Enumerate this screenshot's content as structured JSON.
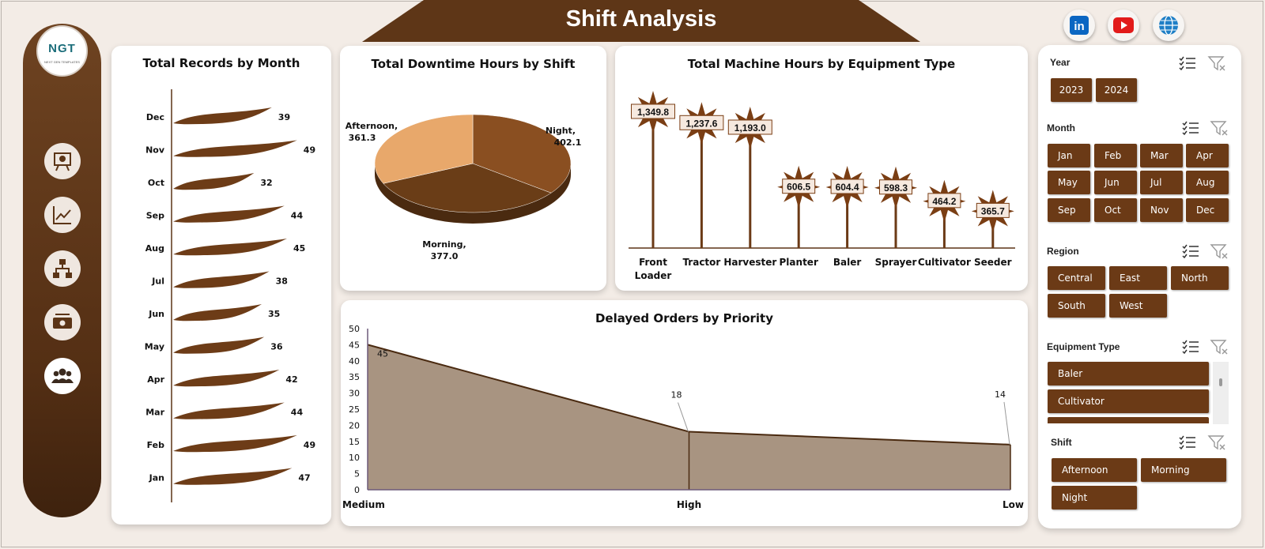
{
  "header": {
    "title": "Shift Analysis"
  },
  "social": [
    "linkedin-icon",
    "youtube-icon",
    "globe-icon"
  ],
  "logo": {
    "text": "NGT",
    "sub": "NEXT GEN TEMPLATES"
  },
  "nav": [
    "presentation-icon",
    "trend-chart-icon",
    "hierarchy-icon",
    "money-icon",
    "users-icon"
  ],
  "colors": {
    "brown": "#6b3a16",
    "dark": "#4a2a10",
    "area": "#a89481",
    "pie_light": "#e8a86b"
  },
  "charts": {
    "records": {
      "title": "Total Records by Month"
    },
    "downtime": {
      "title": "Total Downtime Hours by Shift"
    },
    "machine": {
      "title": "Total Machine Hours by Equipment Type"
    },
    "delayed": {
      "title": "Delayed Orders by Priority"
    }
  },
  "chart_data": [
    {
      "type": "bar",
      "title": "Total Records by Month",
      "categories": [
        "Dec",
        "Nov",
        "Oct",
        "Sep",
        "Aug",
        "Jul",
        "Jun",
        "May",
        "Apr",
        "Mar",
        "Feb",
        "Jan"
      ],
      "values": [
        39,
        49,
        32,
        44,
        45,
        38,
        35,
        36,
        42,
        44,
        49,
        47
      ],
      "orientation": "horizontal"
    },
    {
      "type": "pie",
      "title": "Total Downtime Hours by Shift",
      "categories": [
        "Night",
        "Morning",
        "Afternoon"
      ],
      "labels": [
        "Night,",
        "Morning,",
        "Afternoon,"
      ],
      "values": [
        402.1,
        377.0,
        361.3
      ],
      "value_labels": [
        "402.1",
        "377.0",
        "361.3"
      ]
    },
    {
      "type": "bar",
      "title": "Total Machine Hours by Equipment Type",
      "categories": [
        "Front Loader",
        "Tractor",
        "Harvester",
        "Planter",
        "Baler",
        "Sprayer",
        "Cultivator",
        "Seeder"
      ],
      "category_lines": [
        [
          "Front",
          "Loader"
        ],
        [
          "Tractor"
        ],
        [
          "Harvester"
        ],
        [
          "Planter"
        ],
        [
          "Baler"
        ],
        [
          "Sprayer"
        ],
        [
          "Cultivator"
        ],
        [
          "Seeder"
        ]
      ],
      "values": [
        1349.8,
        1237.6,
        1193.0,
        606.5,
        604.4,
        598.3,
        464.2,
        365.7
      ],
      "value_labels": [
        "1,349.8",
        "1,237.6",
        "1,193.0",
        "606.5",
        "604.4",
        "598.3",
        "464.2",
        "365.7"
      ]
    },
    {
      "type": "area",
      "title": "Delayed Orders by Priority",
      "categories": [
        "Medium",
        "High",
        "Low"
      ],
      "values": [
        45,
        18,
        14
      ],
      "ylim": [
        0,
        50
      ],
      "yticks": [
        "0",
        "5",
        "10",
        "15",
        "20",
        "25",
        "30",
        "35",
        "40",
        "45",
        "50"
      ]
    }
  ],
  "slicers": {
    "year": {
      "title": "Year",
      "items": [
        "2023",
        "2024"
      ]
    },
    "month": {
      "title": "Month",
      "items": [
        "Jan",
        "Feb",
        "Mar",
        "Apr",
        "May",
        "Jun",
        "Jul",
        "Aug",
        "Sep",
        "Oct",
        "Nov",
        "Dec"
      ]
    },
    "region": {
      "title": "Region",
      "items": [
        "Central",
        "East",
        "North",
        "South",
        "West"
      ]
    },
    "equipment": {
      "title": "Equipment Type",
      "items": [
        "Baler",
        "Cultivator"
      ]
    },
    "shift": {
      "title": "Shift",
      "items": [
        "Afternoon",
        "Morning",
        "Night"
      ]
    }
  }
}
